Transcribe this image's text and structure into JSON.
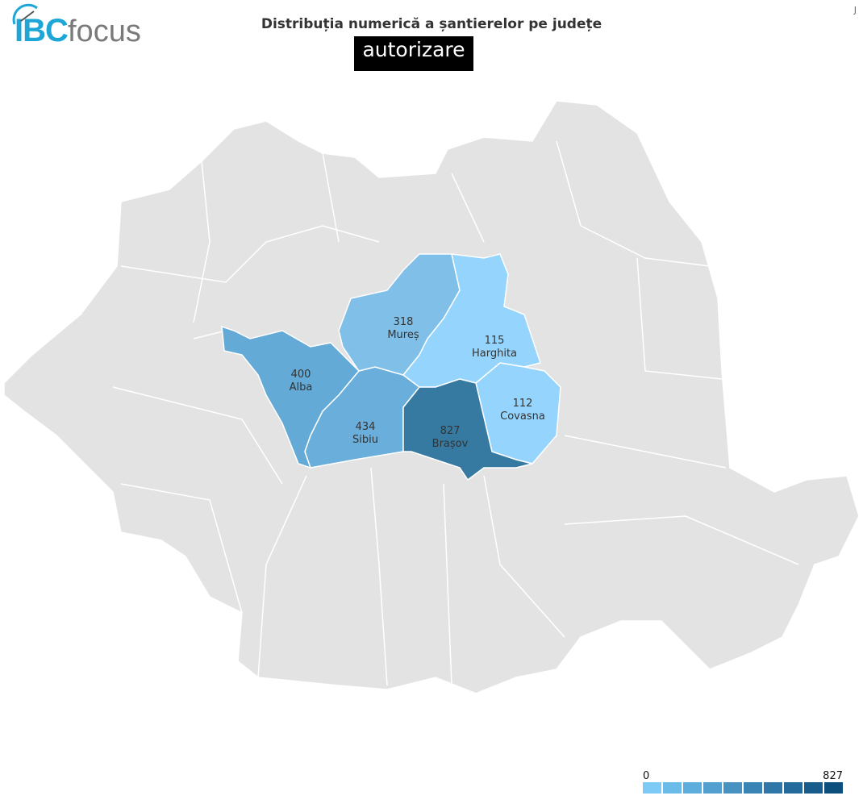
{
  "header": {
    "logo_text": "IBC focus",
    "title": "Distribuția numerică a șantierelor pe județe",
    "subtitle": "autorizare",
    "corner_mark": "J"
  },
  "map": {
    "base_color": "#e3e3e3",
    "border_color": "#ffffff",
    "counties": [
      {
        "name": "Alba",
        "value": "400",
        "color": "#64aad6"
      },
      {
        "name": "Sibiu",
        "value": "434",
        "color": "#6aaedb"
      },
      {
        "name": "Mureș",
        "value": "318",
        "color": "#7fbfe8"
      },
      {
        "name": "Harghita",
        "value": "115",
        "color": "#95d5fd"
      },
      {
        "name": "Covasna",
        "value": "112",
        "color": "#95d5fd"
      },
      {
        "name": "Brașov",
        "value": "827",
        "color": "#367aa2"
      }
    ]
  },
  "legend": {
    "min": "0",
    "max": "827",
    "colors": [
      "#7ccaf5",
      "#6bbbe8",
      "#5eaedd",
      "#529fd0",
      "#4792c3",
      "#3a84b5",
      "#2f77a8",
      "#246a9b",
      "#185c8c",
      "#0c4e7c"
    ]
  }
}
